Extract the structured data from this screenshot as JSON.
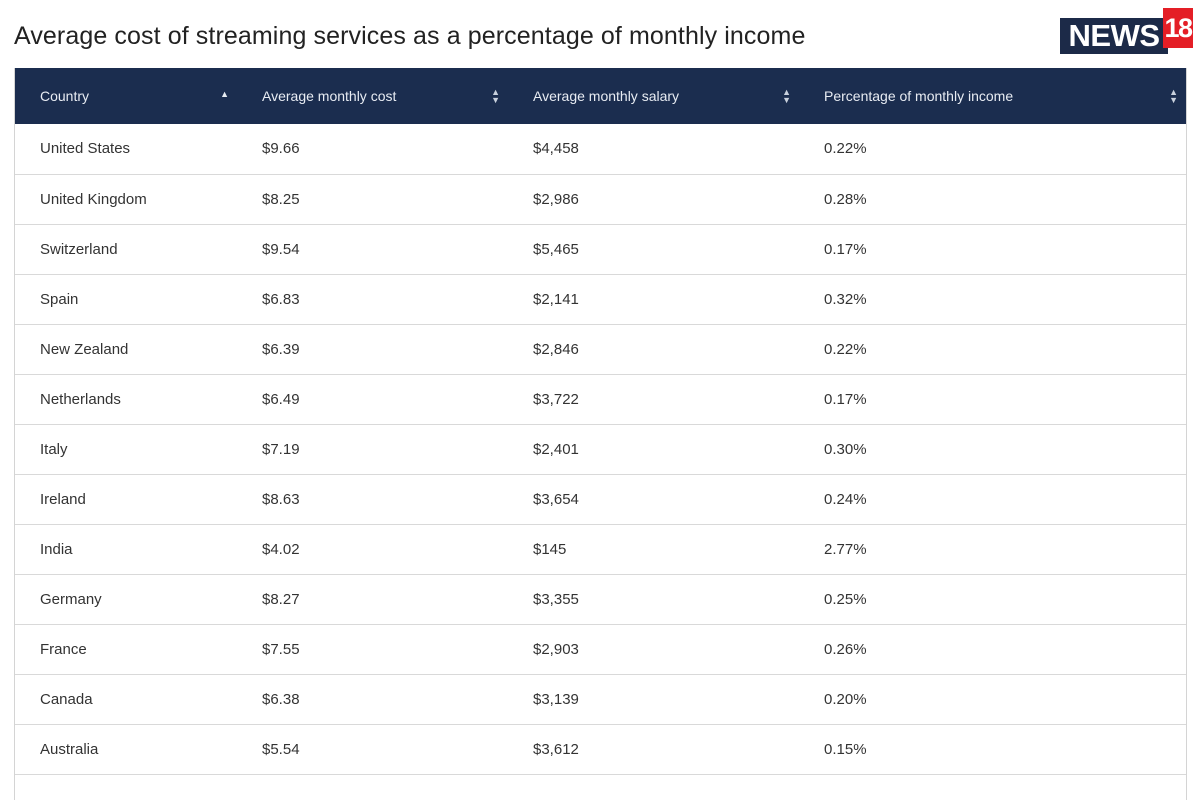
{
  "title": "Average cost of streaming services as a percentage of monthly income",
  "logo": {
    "text_news": "NEWS",
    "text_number": "18"
  },
  "colors": {
    "header_bg": "#1b2d4f",
    "logo_navy": "#1c2a48",
    "logo_red": "#e41e26"
  },
  "table": {
    "columns": [
      {
        "label": "Country",
        "sort": "ascending"
      },
      {
        "label": "Average monthly cost",
        "sort": "none"
      },
      {
        "label": "Average monthly salary",
        "sort": "none"
      },
      {
        "label": "Percentage of monthly income",
        "sort": "none"
      }
    ],
    "rows": [
      [
        "United States",
        "$9.66",
        "$4,458",
        "0.22%"
      ],
      [
        "United Kingdom",
        "$8.25",
        "$2,986",
        "0.28%"
      ],
      [
        "Switzerland",
        "$9.54",
        "$5,465",
        "0.17%"
      ],
      [
        "Spain",
        "$6.83",
        "$2,141",
        "0.32%"
      ],
      [
        "New Zealand",
        "$6.39",
        "$2,846",
        "0.22%"
      ],
      [
        "Netherlands",
        "$6.49",
        "$3,722",
        "0.17%"
      ],
      [
        "Italy",
        "$7.19",
        "$2,401",
        "0.30%"
      ],
      [
        "Ireland",
        "$8.63",
        "$3,654",
        "0.24%"
      ],
      [
        "India",
        "$4.02",
        "$145",
        "2.77%"
      ],
      [
        "Germany",
        "$8.27",
        "$3,355",
        "0.25%"
      ],
      [
        "France",
        "$7.55",
        "$2,903",
        "0.26%"
      ],
      [
        "Canada",
        "$6.38",
        "$3,139",
        "0.20%"
      ],
      [
        "Australia",
        "$5.54",
        "$3,612",
        "0.15%"
      ]
    ]
  }
}
